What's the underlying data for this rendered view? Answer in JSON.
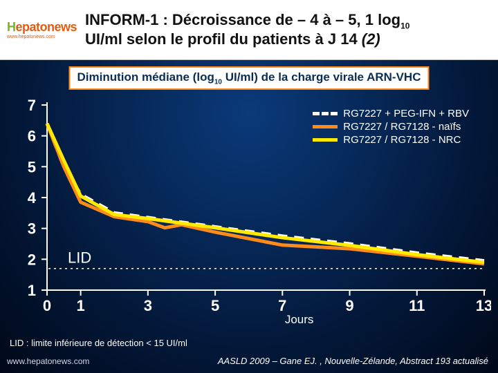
{
  "header": {
    "logo_main": "Hepatonews",
    "logo_sub": "www.hepatonews.com",
    "title_prefix": "INFORM-1 : Décroissance de – 4 à – 5, 1 log",
    "title_sub": "10",
    "title_line2_a": "UI/ml selon le profil du patients à J 14 ",
    "title_line2_b": "(2)"
  },
  "subtitle": {
    "pre": "Diminution médiane (log",
    "sub": "10",
    "post": " UI/ml) de la charge virale ARN-VHC"
  },
  "chart": {
    "type": "line",
    "x": {
      "label_text": "Jours",
      "label_fontsize": 17,
      "ticks": [
        0,
        1,
        3,
        5,
        7,
        9,
        11,
        13
      ],
      "tick_fontsize": 22,
      "tick_fontweight": "bold",
      "lim": [
        0,
        13
      ]
    },
    "y": {
      "ticks": [
        1,
        2,
        3,
        4,
        5,
        6,
        7
      ],
      "tick_fontsize": 22,
      "tick_fontweight": "bold",
      "lim": [
        1,
        7
      ]
    },
    "axis_color": "#ffffff",
    "axis_width": 2,
    "tick_color": "#ffffff",
    "background_color": "transparent",
    "lid": {
      "label": "LID",
      "value_y": 1.7,
      "line_color": "#ffffff",
      "line_dash": "3,5"
    },
    "series": [
      {
        "name": "RG7227 + PEG-IFN + RBV",
        "color": "#ffffff",
        "width": 5,
        "dash": "14,10",
        "points": [
          [
            0,
            6.4
          ],
          [
            0.5,
            5.0
          ],
          [
            1,
            4.1
          ],
          [
            2,
            3.5
          ],
          [
            3,
            3.35
          ],
          [
            5,
            3.05
          ],
          [
            7,
            2.75
          ],
          [
            9,
            2.5
          ],
          [
            11,
            2.2
          ],
          [
            13,
            1.95
          ]
        ]
      },
      {
        "name": "RG7227 / RG7128 - naïfs",
        "color": "#ff8c1a",
        "width": 5,
        "dash": "",
        "points": [
          [
            0,
            6.4
          ],
          [
            0.5,
            5.0
          ],
          [
            1,
            3.85
          ],
          [
            2,
            3.38
          ],
          [
            3,
            3.22
          ],
          [
            3.5,
            3.02
          ],
          [
            4,
            3.12
          ],
          [
            5,
            2.88
          ],
          [
            7,
            2.46
          ],
          [
            9,
            2.34
          ],
          [
            11,
            2.1
          ],
          [
            13,
            1.85
          ]
        ]
      },
      {
        "name": "RG7227 / RG7128 - NRC",
        "color": "#ffea00",
        "width": 5,
        "dash": "",
        "points": [
          [
            0,
            6.4
          ],
          [
            0.5,
            5.2
          ],
          [
            1,
            4.05
          ],
          [
            2,
            3.45
          ],
          [
            3,
            3.32
          ],
          [
            5,
            3.02
          ],
          [
            7,
            2.7
          ],
          [
            9,
            2.45
          ],
          [
            11,
            2.15
          ],
          [
            13,
            1.9
          ]
        ]
      }
    ],
    "legend": {
      "fontsize": 15,
      "color": "#ffffff"
    }
  },
  "note": "LID : limite inférieure de détection < 15 UI/ml",
  "watermark": "www.hepatonews.com",
  "credit": "AASLD 2009 – Gane EJ. , Nouvelle-Zélande, Abstract 193 actualisé",
  "colors": {
    "orange": "#ff8c1a",
    "yellow": "#ffea00",
    "white": "#ffffff",
    "box_border": "#ff8c1a",
    "text_dark": "#0b2d55"
  }
}
